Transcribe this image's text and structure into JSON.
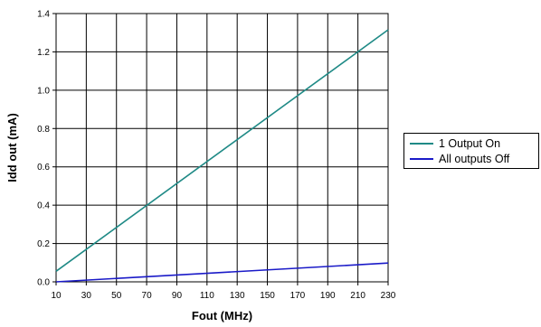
{
  "chart_data": {
    "type": "line",
    "xlabel": "Fout (MHz)",
    "ylabel": "Idd out (mA)",
    "xlim": [
      10,
      230
    ],
    "ylim": [
      0,
      1.4
    ],
    "x_ticks": [
      "10",
      "30",
      "50",
      "70",
      "90",
      "110",
      "130",
      "150",
      "170",
      "190",
      "210",
      "230"
    ],
    "y_ticks": [
      "0.0",
      "0.2",
      "0.4",
      "0.6",
      "0.8",
      "1.0",
      "1.2",
      "1.4"
    ],
    "grid": true,
    "legend_position": "right",
    "series": [
      {
        "name": "1 Output On",
        "color": "#1f8a86",
        "x": [
          10,
          230
        ],
        "y": [
          0.055,
          1.315
        ]
      },
      {
        "name": "All outputs Off",
        "color": "#1a1ac8",
        "x": [
          10,
          230
        ],
        "y": [
          0.0,
          0.098
        ]
      }
    ]
  }
}
